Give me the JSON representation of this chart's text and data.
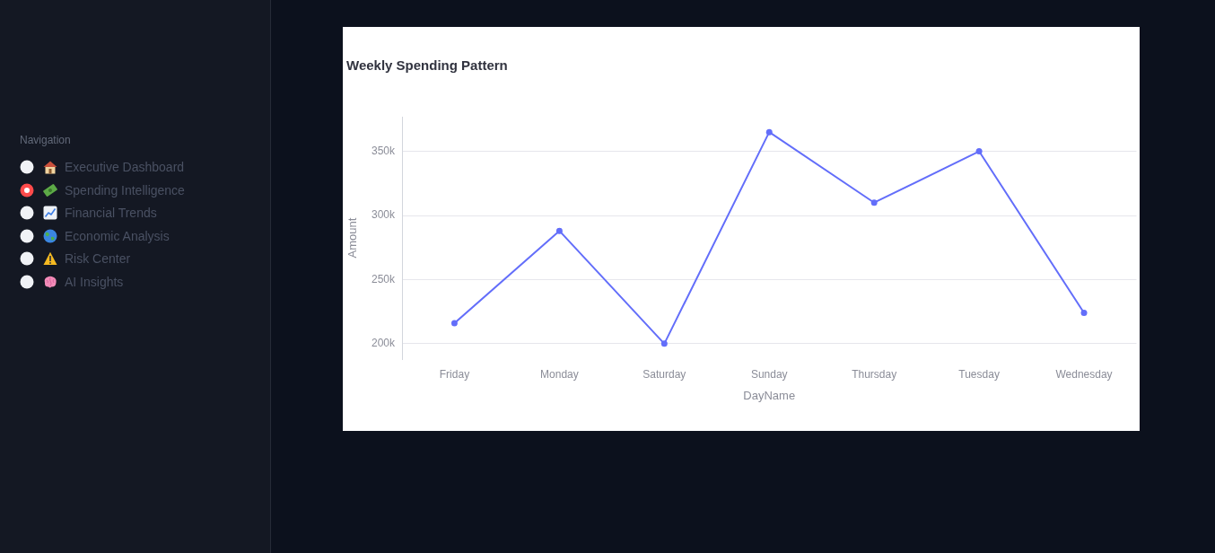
{
  "chart_data": [
    {
      "type": "other",
      "title": "Navigation",
      "annotations": [
        "Executive Dashboard",
        "Spending Intelligence",
        "Financial Trends",
        "Economic Analysis",
        "Risk Center",
        "AI Insights"
      ]
    },
    {
      "type": "line",
      "title": "Weekly Spending Pattern",
      "xlabel": "DayName",
      "ylabel": "Amount",
      "categories": [
        "Friday",
        "Monday",
        "Saturday",
        "Sunday",
        "Thursday",
        "Tuesday",
        "Wednesday"
      ],
      "values": [
        216000,
        288000,
        200000,
        365000,
        310000,
        350000,
        224000
      ],
      "color": "#636efa",
      "ylim": [
        188000,
        377000
      ],
      "yticks": [
        {
          "value": 200000,
          "label": "200k"
        },
        {
          "value": 250000,
          "label": "250k"
        },
        {
          "value": 300000,
          "label": "300k"
        },
        {
          "value": 350000,
          "label": "350k"
        }
      ],
      "grid": "y",
      "marker": "circle",
      "line_style": "solid"
    }
  ]
}
